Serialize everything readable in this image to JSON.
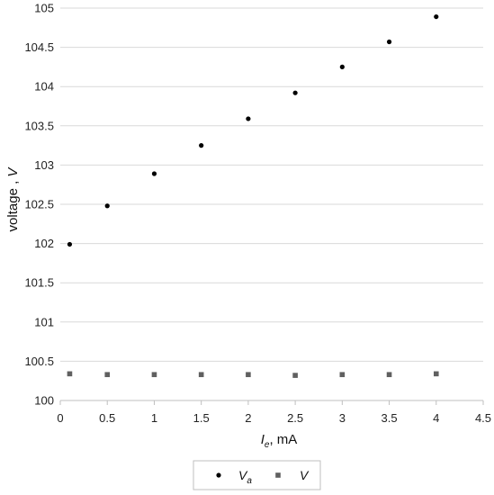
{
  "chart_data": {
    "type": "scatter",
    "x": [
      0.1,
      0.5,
      1,
      1.5,
      2,
      2.5,
      3,
      3.5,
      4
    ],
    "series": [
      {
        "name": "V_a",
        "legend_main": "V",
        "legend_sub": "a",
        "marker": "circle",
        "color": "#000000",
        "values": [
          101.99,
          102.48,
          102.89,
          103.25,
          103.59,
          103.92,
          104.25,
          104.57,
          104.89
        ]
      },
      {
        "name": "V",
        "legend_main": "V",
        "legend_sub": "",
        "marker": "square",
        "color": "#606060",
        "values": [
          100.34,
          100.33,
          100.33,
          100.33,
          100.33,
          100.32,
          100.33,
          100.33,
          100.34
        ]
      }
    ],
    "xlim": [
      0,
      4.5
    ],
    "ylim": [
      100,
      105
    ],
    "xticks": [
      "0",
      "0.5",
      "1",
      "1.5",
      "2",
      "2.5",
      "3",
      "3.5",
      "4",
      "4.5"
    ],
    "yticks": [
      "100",
      "100.5",
      "101",
      "101.5",
      "102",
      "102.5",
      "103",
      "103.5",
      "104",
      "104.5",
      "105"
    ],
    "xlabel": {
      "main": "I",
      "sub": "e",
      "rest": ", mA"
    },
    "ylabel": {
      "main": "voltage , ",
      "italic": "V"
    },
    "grid": "horizontal",
    "legend_position": "bottom"
  }
}
